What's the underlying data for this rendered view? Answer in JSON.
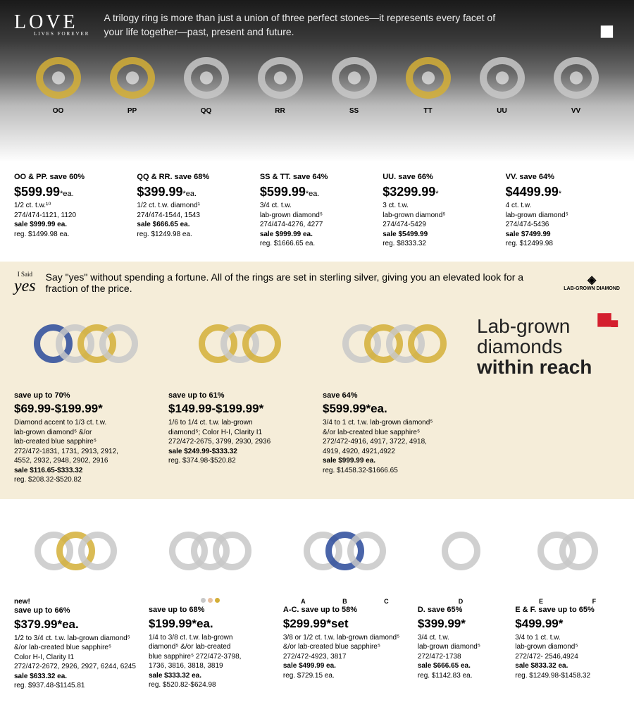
{
  "hero": {
    "logo_big": "LOVE",
    "logo_sub": "LIVES FOREVER",
    "tagline": "A trilogy ring is more than just a union of three perfect stones—it represents every facet of your life together—past, present and future.",
    "labels": [
      "OO",
      "PP",
      "QQ",
      "RR",
      "SS",
      "TT",
      "UU",
      "VV"
    ]
  },
  "row1": [
    {
      "save": "OO & PP. save 60%",
      "price": "$599.99",
      "ea": "*ea.",
      "l1": "1/2 ct. t.w.¹⁰",
      "l2": "274/474-1121, 1120",
      "sale": "sale $999.99 ea.",
      "reg": "reg. $1499.98 ea."
    },
    {
      "save": "QQ & RR. save 68%",
      "price": "$399.99",
      "ea": "*ea.",
      "l1": "1/2 ct. t.w. diamond¹",
      "l2": "274/474-1544, 1543",
      "sale": "sale $666.65 ea.",
      "reg": "reg. $1249.98 ea."
    },
    {
      "save": "SS & TT. save 64%",
      "price": "$599.99",
      "ea": "*ea.",
      "l1": "3/4 ct. t.w.",
      "l2": "lab-grown diamond⁵",
      "l3": "274/474-4276, 4277",
      "sale": "sale $999.99 ea.",
      "reg": "reg. $1666.65 ea."
    },
    {
      "save": "UU. save 66%",
      "price": "$3299.99",
      "ea": "*",
      "l1": "3 ct. t.w.",
      "l2": "lab-grown diamond⁵",
      "l3": "274/474-5429",
      "sale": "sale $5499.99",
      "reg": "reg. $8333.32"
    },
    {
      "save": "VV. save 64%",
      "price": "$4499.99",
      "ea": "*",
      "l1": "4 ct. t.w.",
      "l2": "lab-grown diamond⁵",
      "l3": "274/474-5436",
      "sale": "sale $7499.99",
      "reg": "reg. $12499.98"
    }
  ],
  "sec2": {
    "yes_s": "I Said",
    "yes": "yes",
    "yes_sub": "LAB GROWN DIAMOND",
    "tag": "Say \"yes\" without spending a fortune. All of the rings are set in sterling silver, giving you an elevated look for a fraction of the price.",
    "badge": "LAB-GROWN DIAMOND"
  },
  "row2": [
    {
      "save": "save up to 70%",
      "price": "$69.99-$199.99*",
      "l1": "Diamond accent to 1/3 ct. t.w.",
      "l2": "lab-grown diamond⁵ &/or",
      "l3": "lab-created blue sapphire⁵",
      "l4": "272/472-1831, 1731, 2913, 2912,",
      "l5": "4552, 2932, 2948, 2902, 2916",
      "sale": "sale $116.65-$333.32",
      "reg": "reg. $208.32-$520.82"
    },
    {
      "save": "save up to 61%",
      "price": "$149.99-$199.99*",
      "l1": "1/6 to 1/4 ct. t.w. lab-grown",
      "l2": "diamond⁵; Color H-I, Clarity I1",
      "l3": "272/472-2675, 3799, 2930, 2936",
      "sale": "sale $249.99-$333.32",
      "reg": "reg. $374.98-$520.82"
    },
    {
      "save": "save 64%",
      "price": "$599.99*ea.",
      "l1": "3/4 to 1 ct. t.w. lab-grown diamond⁵",
      "l2": "&/or lab-created blue sapphire⁵",
      "l3": "272/472-4916, 4917, 3722, 4918,",
      "l4": "4919, 4920, 4921,4922",
      "sale": "sale $999.99 ea.",
      "reg": "reg. $1458.32-$1666.65"
    }
  ],
  "feature": {
    "l1": "Lab-grown",
    "l2": "diamonds",
    "l3": "within reach"
  },
  "row3": [
    {
      "new1": "new!",
      "new2": "new!",
      "save": "save up to 66%",
      "price": "$379.99*ea.",
      "l1": "1/2 to 3/4 ct. t.w. lab-grown diamond⁵",
      "l2": "&/or lab-created blue sapphire⁵",
      "l3": "Color H-I, Clarity I1",
      "l4": "272/472-2672, 2926, 2927, 6244, 6245",
      "sale": "sale $633.32 ea.",
      "reg": "reg. $937.48-$1145.81"
    },
    {
      "save": "save up to 68%",
      "price": "$199.99*ea.",
      "l1": "1/4 to 3/8 ct. t.w. lab-grown",
      "l2": "diamond⁵ &/or lab-created",
      "l3": "blue sapphire⁵ 272/472-3798,",
      "l4": "1736, 3816, 3818, 3819",
      "sale": "sale $333.32 ea.",
      "reg": "reg. $520.82-$624.98"
    },
    {
      "abc": [
        "A",
        "B",
        "C"
      ],
      "save": "A-C. save up to 58%",
      "price": "$299.99*set",
      "l1": "3/8 or 1/2 ct. t.w. lab-grown diamond⁵",
      "l2": "&/or lab-created blue sapphire⁵",
      "l3": "272/472-4923, 3817",
      "sale": "sale $499.99 ea.",
      "reg": "reg. $729.15 ea."
    },
    {
      "abc": [
        "D"
      ],
      "save": "D. save 65%",
      "price": "$399.99*",
      "l1": "3/4 ct. t.w.",
      "l2": "lab-grown diamond⁵",
      "l3": "272/472-1738",
      "sale": "sale $666.65 ea.",
      "reg": "reg. $1142.83 ea."
    },
    {
      "abc": [
        "E",
        "F"
      ],
      "save": "E & F. save up to 65%",
      "price": "$499.99*",
      "l1": "3/4 to 1 ct. t.w.",
      "l2": "lab-grown diamond⁵",
      "l3": "272/472- 2546,4924",
      "sale": "sale $833.32 ea.",
      "reg": "reg. $1249.98-$1458.32"
    }
  ]
}
